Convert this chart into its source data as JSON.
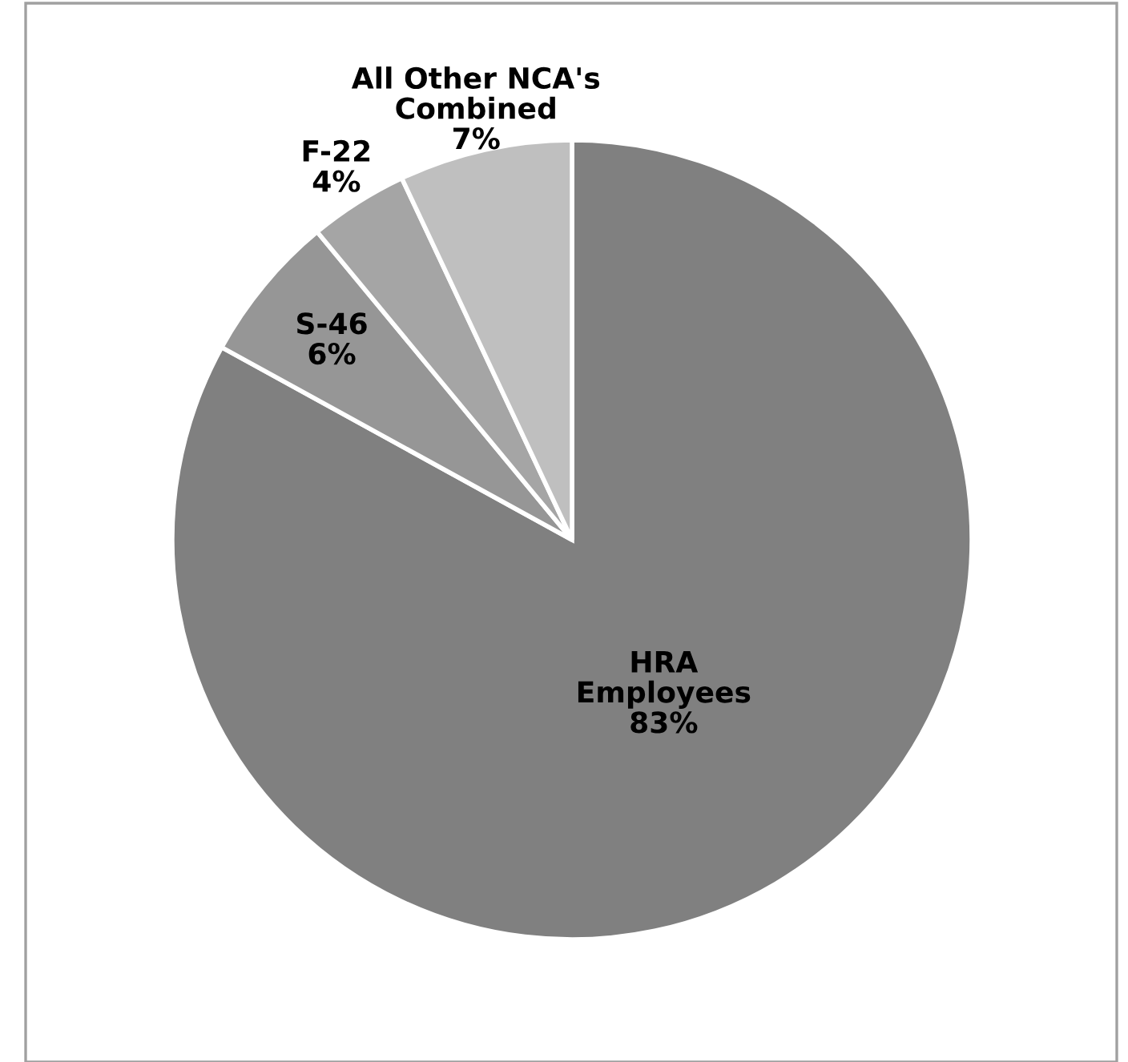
{
  "chart_data": {
    "type": "pie",
    "categories": [
      "HRA\nEmployees",
      "S-46",
      "F-22",
      "All Other NCA's\nCombined"
    ],
    "values": [
      83,
      6,
      4,
      7
    ],
    "value_labels": [
      "83%",
      "6%",
      "4%",
      "7%"
    ],
    "colors": [
      "#808080",
      "#969696",
      "#a5a5a5",
      "#bfbfbf"
    ],
    "legend": false
  }
}
